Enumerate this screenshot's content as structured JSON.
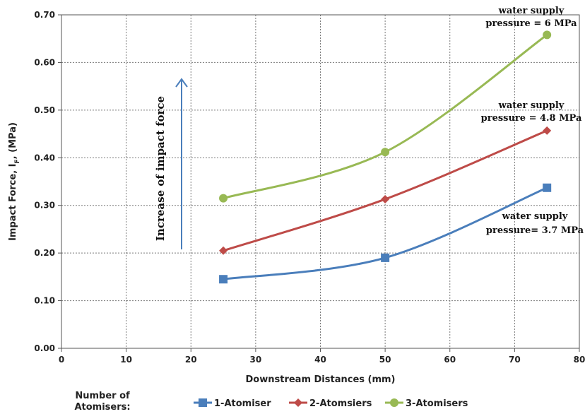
{
  "chart_data": {
    "type": "line",
    "title": "",
    "xlabel": "Downstream Distances (mm)",
    "ylabel_main": "Impact Force, I",
    "ylabel_sub": "F",
    "ylabel_tail": ", (MPa)",
    "xlim": [
      0,
      80
    ],
    "ylim": [
      0,
      0.7
    ],
    "xticks": [
      "0",
      "10",
      "20",
      "30",
      "40",
      "50",
      "60",
      "70",
      "80"
    ],
    "yticks": [
      "0.00",
      "0.10",
      "0.20",
      "0.30",
      "0.40",
      "0.50",
      "0.60",
      "0.70"
    ],
    "grid": true,
    "legend_title_line1": "Number of",
    "legend_title_line2": "Atomisers:",
    "legend_position": "bottom",
    "x": [
      25,
      50,
      75
    ],
    "series": [
      {
        "name": "1-Atomiser",
        "values": [
          0.145,
          0.19,
          0.337
        ],
        "color": "#4a7ebb",
        "marker": "square"
      },
      {
        "name": "2-Atomsiers",
        "values": [
          0.205,
          0.313,
          0.457
        ],
        "color": "#be4b48",
        "marker": "diamond"
      },
      {
        "name": "3-Atomisers",
        "values": [
          0.315,
          0.412,
          0.658
        ],
        "color": "#98b954",
        "marker": "circle"
      }
    ],
    "annotations": {
      "top_line1": "water supply",
      "top_line2": "pressure = 6 MPa",
      "mid_line1": "water supply",
      "mid_line2": "pressure = 4.8 MPa",
      "low_line1": "water supply",
      "low_line2": "pressure= 3.7 MPa",
      "arrow_label": "Increase of impact force"
    }
  }
}
